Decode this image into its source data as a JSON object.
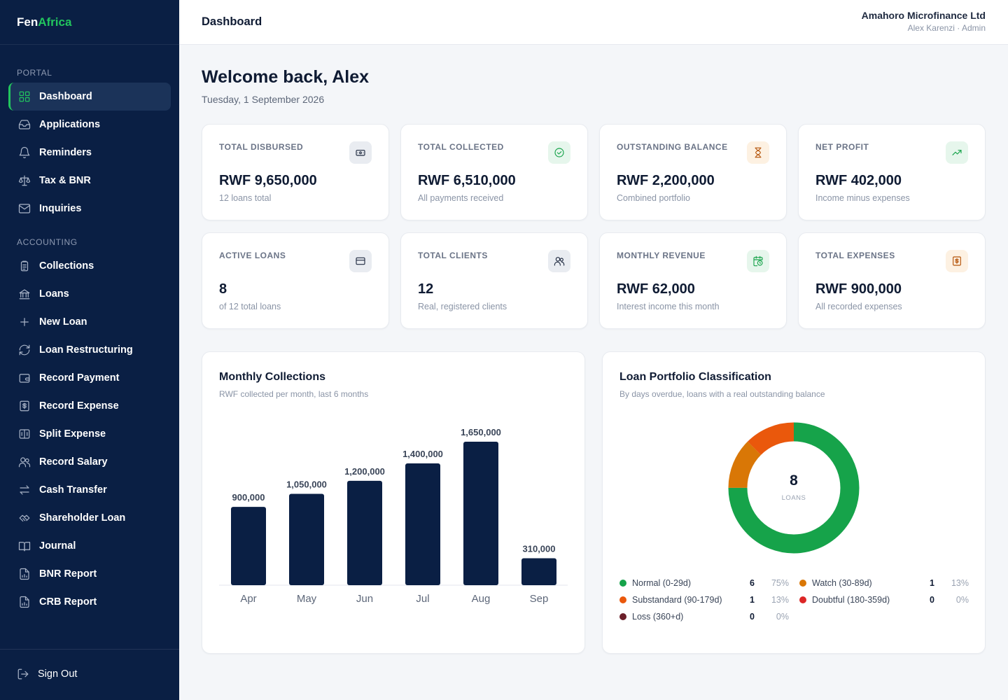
{
  "brand": {
    "part1": "Fen",
    "part2": "Africa"
  },
  "sidebar": {
    "sections": [
      "PORTAL",
      "ACCOUNTING"
    ],
    "portal_items": [
      {
        "label": "Dashboard",
        "icon": "grid-icon"
      },
      {
        "label": "Applications",
        "icon": "inbox-icon"
      },
      {
        "label": "Reminders",
        "icon": "bell-icon"
      },
      {
        "label": "Tax & BNR",
        "icon": "scale-icon"
      },
      {
        "label": "Inquiries",
        "icon": "mail-icon"
      }
    ],
    "accounting_items": [
      {
        "label": "Collections",
        "icon": "clipboard-icon"
      },
      {
        "label": "Loans",
        "icon": "bank-icon"
      },
      {
        "label": "New Loan",
        "icon": "plus-icon"
      },
      {
        "label": "Loan Restructuring",
        "icon": "refresh-icon"
      },
      {
        "label": "Record Payment",
        "icon": "wallet-icon"
      },
      {
        "label": "Record Expense",
        "icon": "receipt-icon"
      },
      {
        "label": "Split Expense",
        "icon": "split-icon"
      },
      {
        "label": "Record Salary",
        "icon": "users-icon"
      },
      {
        "label": "Cash Transfer",
        "icon": "transfer-icon"
      },
      {
        "label": "Shareholder Loan",
        "icon": "handshake-icon"
      },
      {
        "label": "Journal",
        "icon": "book-icon"
      },
      {
        "label": "BNR Report",
        "icon": "report-icon"
      },
      {
        "label": "CRB Report",
        "icon": "report-icon"
      }
    ],
    "signout": "Sign Out"
  },
  "header": {
    "title": "Dashboard",
    "org": "Amahoro Microfinance Ltd",
    "user": "Alex Karenzi · Admin"
  },
  "welcome": "Welcome back, Alex",
  "date": "Tuesday, 1 September 2026",
  "kpis": [
    {
      "label": "TOTAL DISBURSED",
      "value": "RWF 9,650,000",
      "sub": "12 loans total",
      "icon": "banknote-icon",
      "color": "#1f2a40",
      "bg": "#e9ecf1"
    },
    {
      "label": "TOTAL COLLECTED",
      "value": "RWF 6,510,000",
      "sub": "All payments received",
      "icon": "check-circle-icon",
      "color": "#16a34a",
      "bg": "#e6f6ec"
    },
    {
      "label": "OUTSTANDING BALANCE",
      "value": "RWF 2,200,000",
      "sub": "Combined portfolio",
      "icon": "hourglass-icon",
      "color": "#b45309",
      "bg": "#fdf1e2"
    },
    {
      "label": "NET PROFIT",
      "value": "RWF 402,000",
      "sub": "Income minus expenses",
      "icon": "trending-up-icon",
      "color": "#16a34a",
      "bg": "#e6f6ec"
    },
    {
      "label": "ACTIVE LOANS",
      "value": "8",
      "sub": "of 12 total loans",
      "icon": "card-icon",
      "color": "#1f2a40",
      "bg": "#e9ecf1"
    },
    {
      "label": "TOTAL CLIENTS",
      "value": "12",
      "sub": "Real, registered clients",
      "icon": "users-icon",
      "color": "#1f2a40",
      "bg": "#e9ecf1"
    },
    {
      "label": "MONTHLY REVENUE",
      "value": "RWF 62,000",
      "sub": "Interest income this month",
      "icon": "calendar-clock-icon",
      "color": "#16a34a",
      "bg": "#e6f6ec"
    },
    {
      "label": "TOTAL EXPENSES",
      "value": "RWF 900,000",
      "sub": "All recorded expenses",
      "icon": "receipt-icon",
      "color": "#b45309",
      "bg": "#fdf1e2"
    }
  ],
  "collections_card": {
    "title": "Monthly Collections",
    "subtitle": "RWF collected per month, last 6 months"
  },
  "portfolio_card": {
    "title": "Loan Portfolio Classification",
    "subtitle": "By days overdue, loans with a real outstanding balance",
    "center_value": "8",
    "center_label": "LOANS"
  },
  "chart_data": [
    {
      "type": "bar",
      "categories": [
        "Apr",
        "May",
        "Jun",
        "Jul",
        "Aug",
        "Sep"
      ],
      "values": [
        900000,
        1050000,
        1200000,
        1400000,
        1650000,
        310000
      ],
      "data_labels": [
        "900,000",
        "1,050,000",
        "1,200,000",
        "1,400,000",
        "1,650,000",
        "310,000"
      ],
      "ylim": [
        0,
        1650000
      ],
      "color": "#0a1f44",
      "grid": false
    },
    {
      "type": "pie",
      "donut": true,
      "categories": [
        "Normal (0-29d)",
        "Watch (30-89d)",
        "Substandard (90-179d)",
        "Doubtful (180-359d)",
        "Loss (360+d)"
      ],
      "values": [
        6,
        1,
        1,
        0,
        0
      ],
      "percent_labels": [
        "75%",
        "13%",
        "13%",
        "0%",
        "0%"
      ],
      "count_labels": [
        "6",
        "1",
        "1",
        "0",
        "0"
      ],
      "colors": [
        "#16a34a",
        "#d97706",
        "#ea580c",
        "#dc2626",
        "#6b1f2a"
      ]
    }
  ]
}
